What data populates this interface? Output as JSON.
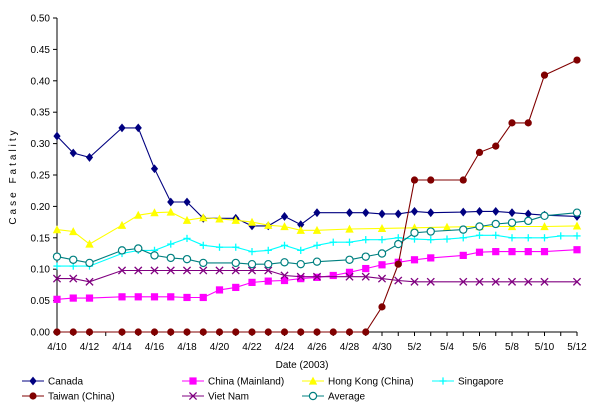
{
  "chart_data": {
    "type": "line",
    "title": "",
    "xlabel": "Date (2003)",
    "ylabel": "Case Fatality",
    "ylim": [
      0,
      0.5
    ],
    "yticks": [
      "0.00",
      "0.05",
      "0.10",
      "0.15",
      "0.20",
      "0.25",
      "0.30",
      "0.35",
      "0.40",
      "0.45",
      "0.50"
    ],
    "xrange": [
      "4/10",
      "5/12"
    ],
    "xticks": [
      "4/10",
      "4/12",
      "4/14",
      "4/16",
      "4/18",
      "4/20",
      "4/22",
      "4/24",
      "4/26",
      "4/28",
      "4/30",
      "5/2",
      "5/4",
      "5/6",
      "5/8",
      "5/10",
      "5/12"
    ],
    "grid": false,
    "legend_position": "bottom",
    "series": [
      {
        "name": "Canada",
        "color": "#000080",
        "marker": "diamond",
        "x": [
          "4/10",
          "4/11",
          "4/12",
          "4/14",
          "4/15",
          "4/16",
          "4/17",
          "4/18",
          "4/19",
          "4/21",
          "4/22",
          "4/23",
          "4/24",
          "4/25",
          "4/26",
          "4/28",
          "4/29",
          "4/30",
          "5/1",
          "5/2",
          "5/3",
          "5/5",
          "5/6",
          "5/7",
          "5/8",
          "5/9",
          "5/10",
          "5/12"
        ],
        "y": [
          0.312,
          0.285,
          0.278,
          0.325,
          0.325,
          0.26,
          0.207,
          0.207,
          0.181,
          0.181,
          0.169,
          0.169,
          0.184,
          0.171,
          0.19,
          0.19,
          0.19,
          0.188,
          0.188,
          0.192,
          0.19,
          0.191,
          0.192,
          0.192,
          0.19,
          0.188,
          0.186,
          0.184
        ]
      },
      {
        "name": "China (Mainland)",
        "color": "#ff00ff",
        "marker": "square",
        "x": [
          "4/10",
          "4/11",
          "4/12",
          "4/14",
          "4/15",
          "4/16",
          "4/17",
          "4/18",
          "4/19",
          "4/20",
          "4/21",
          "4/22",
          "4/23",
          "4/24",
          "4/25",
          "4/26",
          "4/27",
          "4/28",
          "4/29",
          "4/30",
          "5/1",
          "5/2",
          "5/3",
          "5/5",
          "5/6",
          "5/7",
          "5/8",
          "5/9",
          "5/10",
          "5/12"
        ],
        "y": [
          0.052,
          0.054,
          0.054,
          0.056,
          0.056,
          0.056,
          0.056,
          0.055,
          0.055,
          0.067,
          0.071,
          0.079,
          0.081,
          0.082,
          0.085,
          0.087,
          0.09,
          0.095,
          0.101,
          0.107,
          0.111,
          0.115,
          0.118,
          0.122,
          0.127,
          0.128,
          0.128,
          0.128,
          0.128,
          0.131
        ]
      },
      {
        "name": "Hong Kong (China)",
        "color": "#ffff00",
        "marker": "triangle",
        "x": [
          "4/10",
          "4/11",
          "4/12",
          "4/14",
          "4/15",
          "4/16",
          "4/17",
          "4/18",
          "4/19",
          "4/20",
          "4/21",
          "4/22",
          "4/23",
          "4/24",
          "4/25",
          "4/26",
          "4/28",
          "4/30",
          "5/2",
          "5/4",
          "5/6",
          "5/8",
          "5/10",
          "5/12"
        ],
        "y": [
          0.163,
          0.16,
          0.14,
          0.17,
          0.186,
          0.19,
          0.191,
          0.178,
          0.182,
          0.18,
          0.178,
          0.175,
          0.17,
          0.168,
          0.162,
          0.162,
          0.164,
          0.165,
          0.166,
          0.167,
          0.168,
          0.168,
          0.168,
          0.169
        ]
      },
      {
        "name": "Singapore",
        "color": "#00ffff",
        "marker": "plus",
        "x": [
          "4/10",
          "4/11",
          "4/12",
          "4/14",
          "4/15",
          "4/16",
          "4/17",
          "4/18",
          "4/19",
          "4/20",
          "4/21",
          "4/22",
          "4/23",
          "4/24",
          "4/25",
          "4/26",
          "4/27",
          "4/28",
          "4/29",
          "4/30",
          "5/1",
          "5/2",
          "5/3",
          "5/4",
          "5/5",
          "5/6",
          "5/7",
          "5/8",
          "5/9",
          "5/10",
          "5/11",
          "5/12"
        ],
        "y": [
          0.105,
          0.105,
          0.105,
          0.125,
          0.13,
          0.13,
          0.14,
          0.149,
          0.138,
          0.135,
          0.135,
          0.128,
          0.13,
          0.138,
          0.13,
          0.138,
          0.143,
          0.143,
          0.147,
          0.147,
          0.15,
          0.148,
          0.147,
          0.148,
          0.15,
          0.154,
          0.154,
          0.15,
          0.15,
          0.15,
          0.153,
          0.153
        ]
      },
      {
        "name": "Taiwan (China)",
        "color": "#800000",
        "marker": "circle",
        "x": [
          "4/10",
          "4/11",
          "4/12",
          "4/14",
          "4/15",
          "4/16",
          "4/17",
          "4/18",
          "4/19",
          "4/20",
          "4/21",
          "4/22",
          "4/23",
          "4/24",
          "4/25",
          "4/26",
          "4/27",
          "4/28",
          "4/29",
          "4/30",
          "5/1",
          "5/2",
          "5/3",
          "5/5",
          "5/6",
          "5/7",
          "5/8",
          "5/9",
          "5/10",
          "5/12"
        ],
        "y": [
          0,
          0,
          0,
          0,
          0,
          0,
          0,
          0,
          0,
          0,
          0,
          0,
          0,
          0,
          0,
          0,
          0,
          0,
          0,
          0.04,
          0.108,
          0.242,
          0.242,
          0.242,
          0.286,
          0.296,
          0.333,
          0.333,
          0.409,
          0.433
        ]
      },
      {
        "name": "Viet Nam",
        "color": "#800080",
        "marker": "x",
        "x": [
          "4/10",
          "4/11",
          "4/12",
          "4/14",
          "4/15",
          "4/16",
          "4/17",
          "4/18",
          "4/19",
          "4/20",
          "4/21",
          "4/22",
          "4/23",
          "4/24",
          "4/25",
          "4/26",
          "4/28",
          "4/29",
          "4/30",
          "5/1",
          "5/2",
          "5/3",
          "5/5",
          "5/6",
          "5/7",
          "5/8",
          "5/9",
          "5/10",
          "5/12"
        ],
        "y": [
          0.085,
          0.085,
          0.08,
          0.098,
          0.098,
          0.098,
          0.098,
          0.098,
          0.098,
          0.098,
          0.098,
          0.098,
          0.098,
          0.09,
          0.088,
          0.088,
          0.088,
          0.088,
          0.085,
          0.082,
          0.08,
          0.08,
          0.08,
          0.08,
          0.08,
          0.08,
          0.08,
          0.08,
          0.08
        ]
      },
      {
        "name": "Average",
        "color": "#008080",
        "marker": "hollow-circle",
        "x": [
          "4/10",
          "4/11",
          "4/12",
          "4/14",
          "4/15",
          "4/16",
          "4/17",
          "4/18",
          "4/19",
          "4/21",
          "4/22",
          "4/23",
          "4/24",
          "4/25",
          "4/26",
          "4/28",
          "4/29",
          "4/30",
          "5/1",
          "5/2",
          "5/3",
          "5/5",
          "5/6",
          "5/7",
          "5/8",
          "5/9",
          "5/10",
          "5/12"
        ],
        "y": [
          0.12,
          0.115,
          0.11,
          0.13,
          0.133,
          0.122,
          0.118,
          0.116,
          0.11,
          0.11,
          0.108,
          0.108,
          0.111,
          0.108,
          0.112,
          0.115,
          0.12,
          0.125,
          0.14,
          0.158,
          0.16,
          0.163,
          0.168,
          0.172,
          0.174,
          0.177,
          0.185,
          0.19
        ]
      }
    ]
  }
}
